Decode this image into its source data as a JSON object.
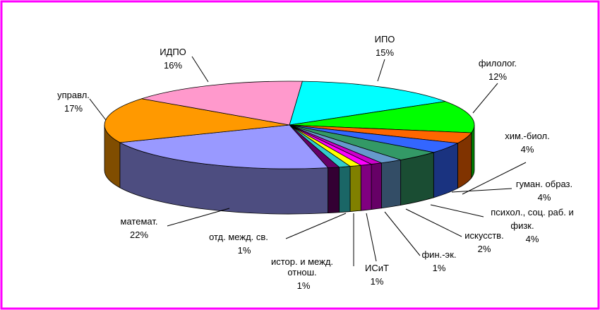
{
  "chart_data": {
    "type": "pie",
    "title": "",
    "slices": [
      {
        "name": "ИПО",
        "percent_label": "15%",
        "value": 15,
        "color": "#00ffff"
      },
      {
        "name": "филолог.",
        "percent_label": "12%",
        "value": 12,
        "color": "#00ff00"
      },
      {
        "name": "хим.-биол.",
        "percent_label": "4%",
        "value": 4,
        "color": "#ff6600"
      },
      {
        "name": "гуман. образ.",
        "percent_label": "4%",
        "value": 4,
        "color": "#3366ff"
      },
      {
        "name": "психол., соц. раб. и физк.",
        "percent_label": "4%",
        "value": 4,
        "color": "#339966"
      },
      {
        "name": "искусств.",
        "percent_label": "2%",
        "value": 2,
        "color": "#6699cc"
      },
      {
        "name": "фин.-эк.",
        "percent_label": "1%",
        "value": 1,
        "color": "#cc00cc"
      },
      {
        "name": "ИСиТ",
        "percent_label": "1%",
        "value": 1,
        "color": "#ff00ff"
      },
      {
        "name": "истор. и межд. отнош.",
        "percent_label": "1%",
        "value": 1,
        "color": "#ffff00"
      },
      {
        "name": "отд. межд. св.",
        "percent_label": "1%",
        "value": 1,
        "color": "#33cccc"
      },
      {
        "name": "",
        "percent_label": "",
        "value": 1,
        "color": "#660066"
      },
      {
        "name": "математ.",
        "percent_label": "22%",
        "value": 22,
        "color": "#9999ff"
      },
      {
        "name": "управл.",
        "percent_label": "17%",
        "value": 17,
        "color": "#ff9900"
      },
      {
        "name": "ИДПО",
        "percent_label": "16%",
        "value": 16,
        "color": "#ff99cc"
      }
    ]
  }
}
